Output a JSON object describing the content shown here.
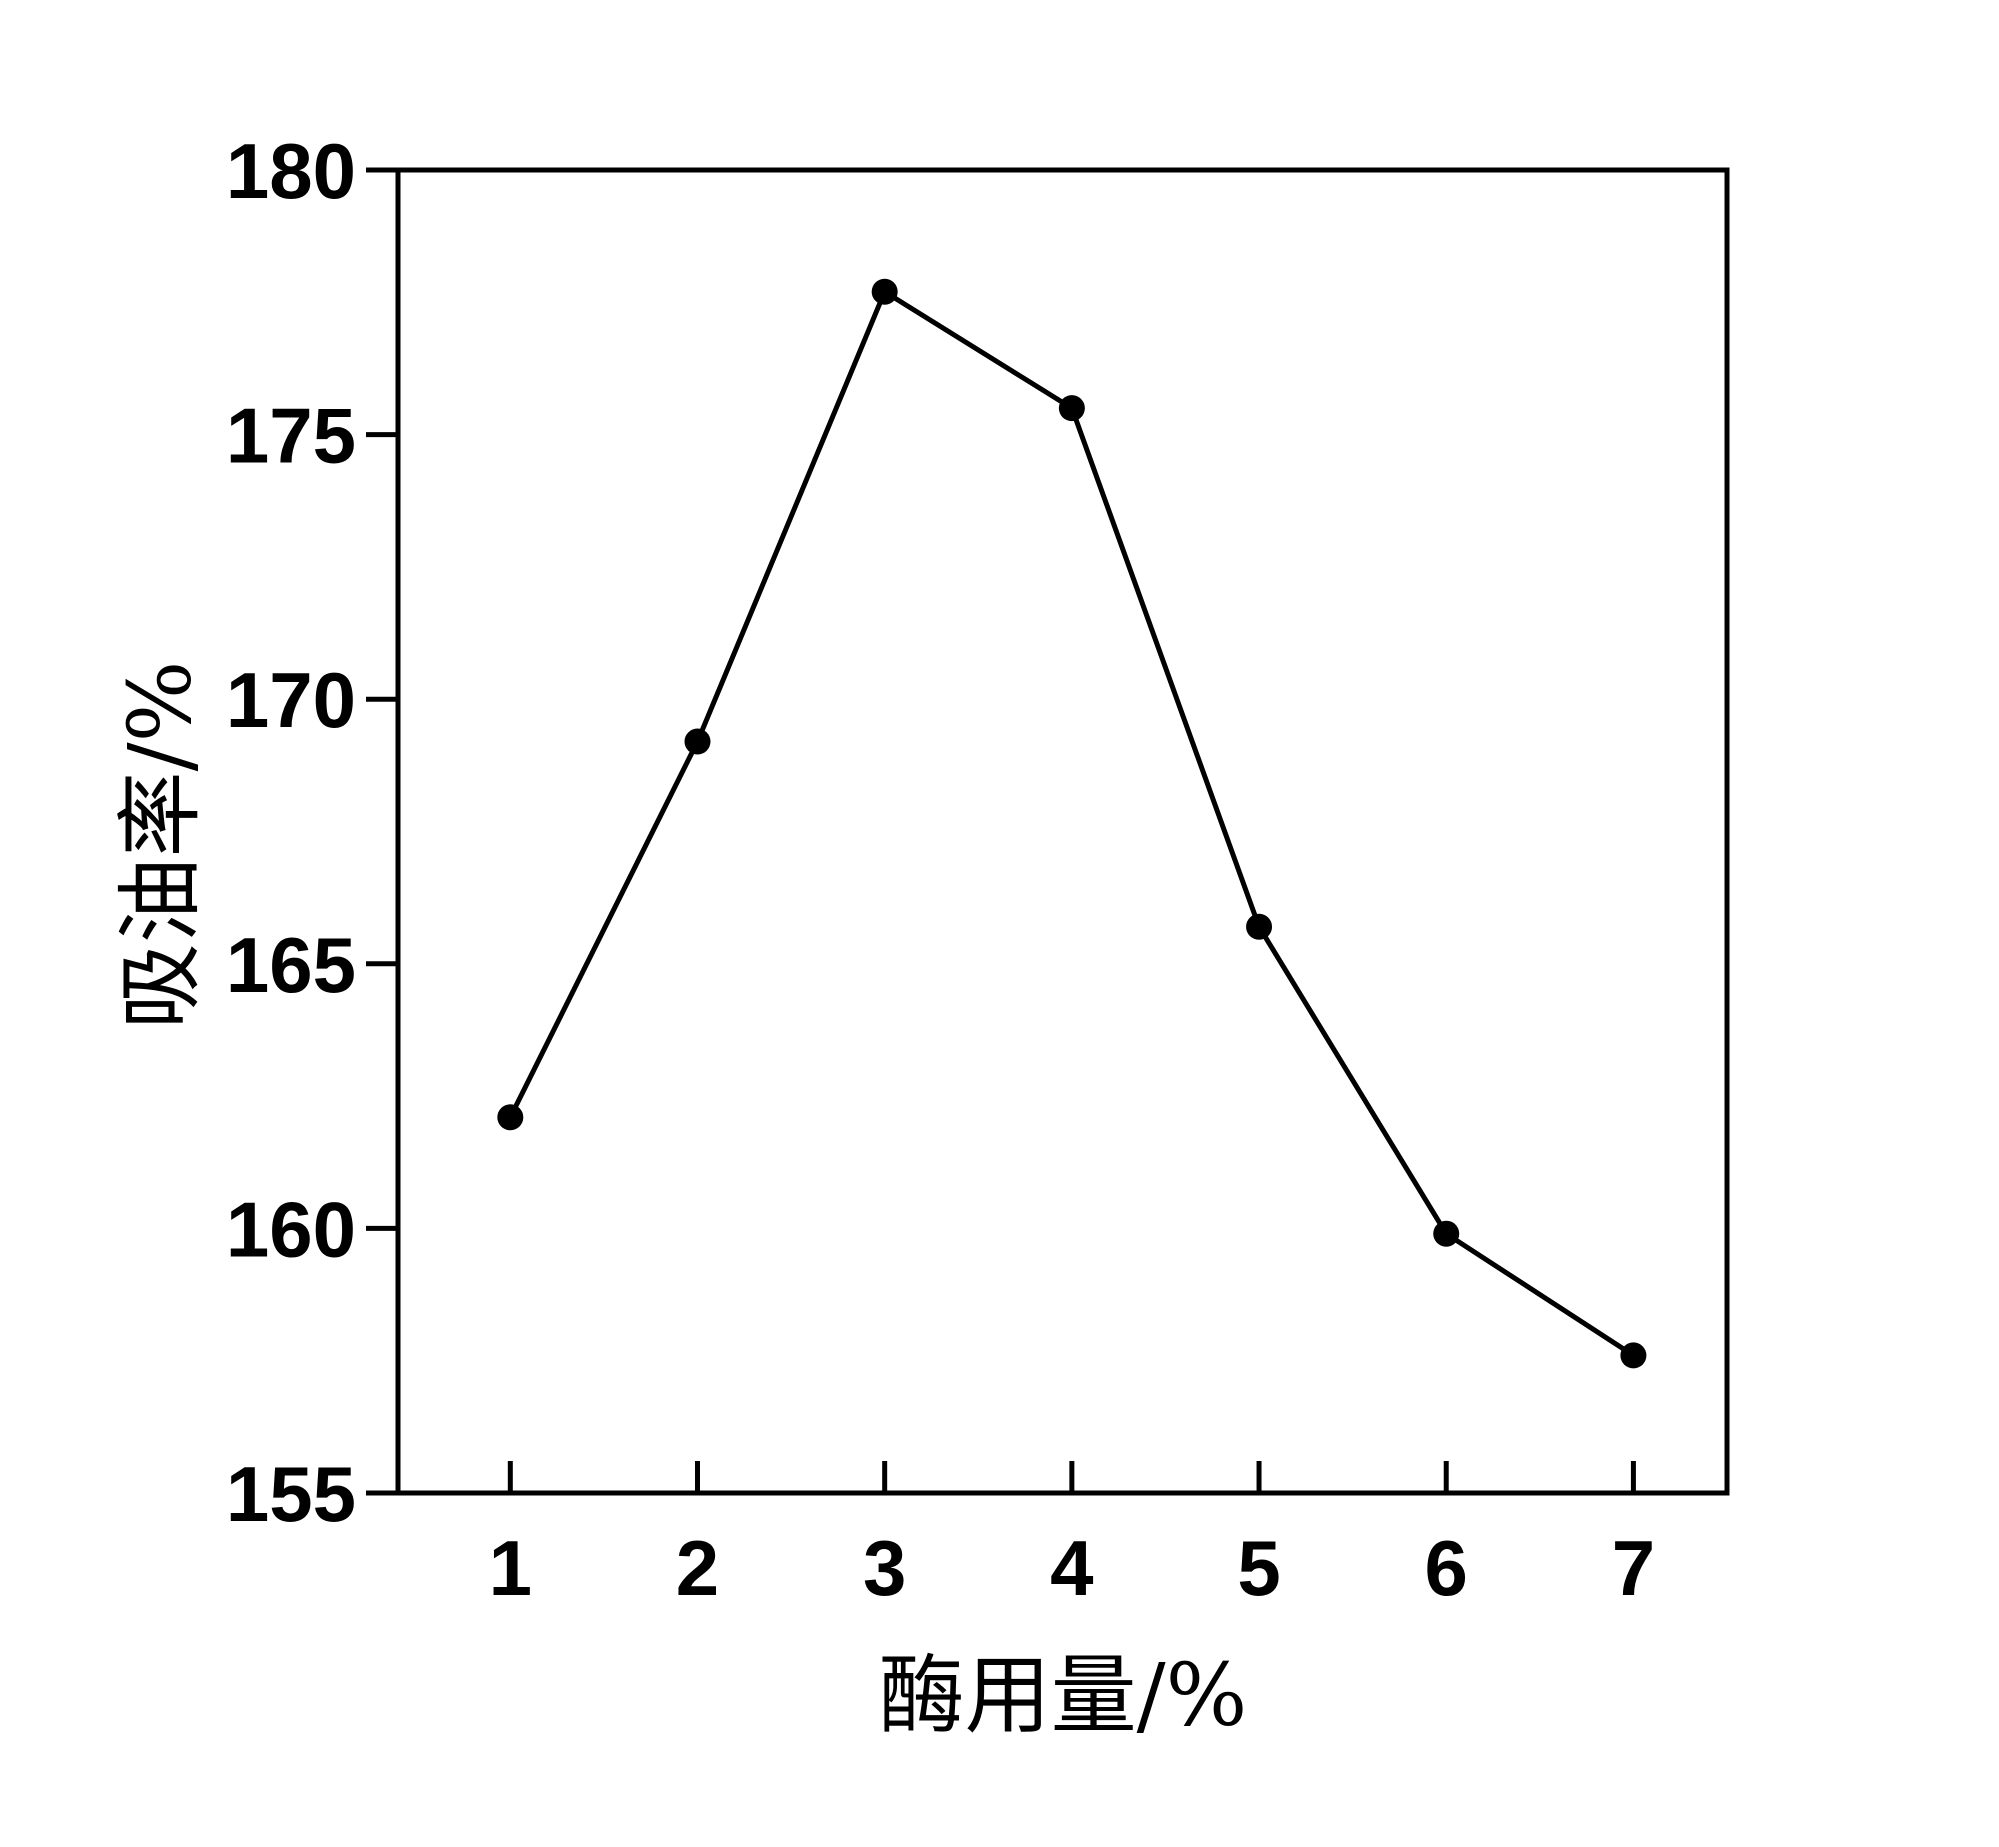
{
  "chart_data": {
    "type": "line",
    "xlabel": "酶用量/%",
    "ylabel": "吸油率/%",
    "x": [
      1,
      2,
      3,
      4,
      5,
      6,
      7
    ],
    "series": [
      {
        "name": "吸油率",
        "color": "#000000",
        "values": [
          162.1,
          169.2,
          177.7,
          175.5,
          165.7,
          159.9,
          157.6
        ]
      }
    ],
    "xlim": [
      0.4,
      7.5
    ],
    "xticks": [
      1,
      2,
      3,
      4,
      5,
      6,
      7
    ],
    "ylim": [
      155,
      180
    ],
    "yticks": [
      155,
      160,
      165,
      170,
      175,
      180
    ],
    "markers": true,
    "grid": false
  }
}
